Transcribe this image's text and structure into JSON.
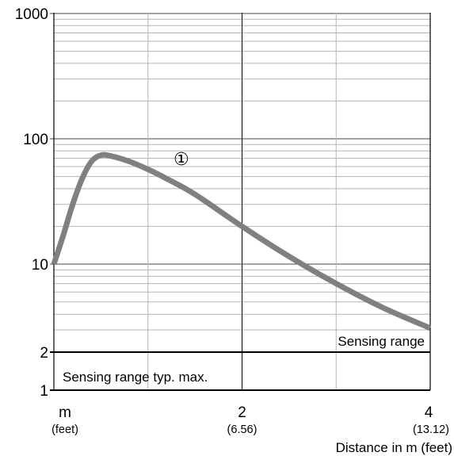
{
  "chart_data": {
    "type": "line",
    "y_scale": "log",
    "x_scale": "linear",
    "ylim": [
      1,
      1000
    ],
    "xlim": [
      0,
      4
    ],
    "grid": true,
    "y_tick_labels": [
      "1000",
      "100",
      "10",
      "2",
      "1"
    ],
    "x_ticks": [
      {
        "value": 0,
        "label": "m",
        "sublabel": "(feet)"
      },
      {
        "value": 2,
        "label": "2",
        "sublabel": "(6.56)"
      },
      {
        "value": 4,
        "label": "4",
        "sublabel": "(13.12)"
      }
    ],
    "xlabel": "Distance in m (feet)",
    "ylabel": "",
    "series": [
      {
        "marker_label": "①",
        "color": "#808080",
        "x": [
          0.0,
          0.1,
          0.2,
          0.3,
          0.4,
          0.5,
          0.6,
          0.8,
          1.0,
          1.2,
          1.5,
          2.0,
          2.5,
          3.0,
          3.5,
          4.0
        ],
        "y": [
          10,
          17,
          30,
          48,
          66,
          74,
          73,
          66,
          57,
          48,
          36,
          20,
          11.5,
          7,
          4.5,
          3.1
        ]
      }
    ],
    "reference_lines": [
      {
        "y": 2,
        "label": "Sensing range"
      },
      {
        "y": 1,
        "label": "Sensing range typ. max."
      }
    ]
  }
}
